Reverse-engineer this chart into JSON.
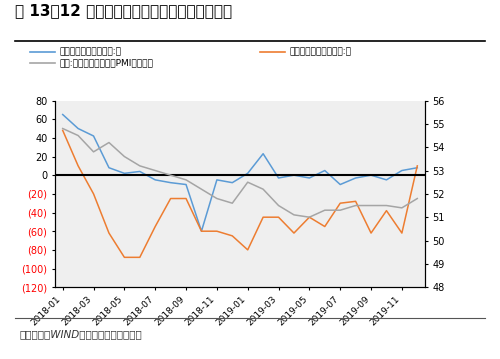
{
  "title": "图 13：12 月全球经济景气和美欧经济意外指数",
  "footnote": "资料来源：WIND，财信国际经济研究院",
  "legend": [
    "花旗美国经济意外指数:月",
    "花旗欧洲经济意外指数:月",
    "全球:摩根大通全球综合PMI（右轴）"
  ],
  "x_labels": [
    "2018-01",
    "2018-03",
    "2018-05",
    "2018-07",
    "2018-09",
    "2018-11",
    "2019-01",
    "2019-03",
    "2019-05",
    "2019-07",
    "2019-09",
    "2019-11"
  ],
  "us_surprise": [
    65,
    50,
    42,
    8,
    2,
    4,
    -5,
    -8,
    -10,
    -60,
    -5,
    -8,
    2,
    23,
    -3,
    0,
    -3,
    5,
    -10,
    -3,
    0,
    -5,
    5,
    8
  ],
  "eu_surprise": [
    48,
    10,
    -20,
    -62,
    -88,
    -88,
    -55,
    -25,
    -25,
    -60,
    -60,
    -65,
    -80,
    -45,
    -45,
    -62,
    -45,
    -55,
    -30,
    -28,
    -62,
    -38,
    -62,
    10
  ],
  "global_pmi": [
    54.8,
    54.5,
    53.8,
    54.2,
    53.6,
    53.2,
    53.0,
    52.8,
    52.6,
    52.2,
    51.8,
    51.6,
    52.5,
    52.2,
    51.5,
    51.1,
    51.0,
    51.3,
    51.3,
    51.5,
    51.5,
    51.5,
    51.4,
    51.8
  ],
  "left_ylim": [
    -120,
    80
  ],
  "right_ylim": [
    48,
    56
  ],
  "left_yticks": [
    80,
    60,
    40,
    20,
    0,
    -20,
    -40,
    -60,
    -80,
    -100,
    -120
  ],
  "right_yticks": [
    56,
    55,
    54,
    53,
    52,
    51,
    50,
    49,
    48
  ],
  "color_us": "#5B9BD5",
  "color_eu": "#ED7D31",
  "color_pmi": "#A5A5A5",
  "color_neg_tick": "#FF0000",
  "bg_color": "#FFFFFF",
  "plot_bg": "#EFEFEF"
}
